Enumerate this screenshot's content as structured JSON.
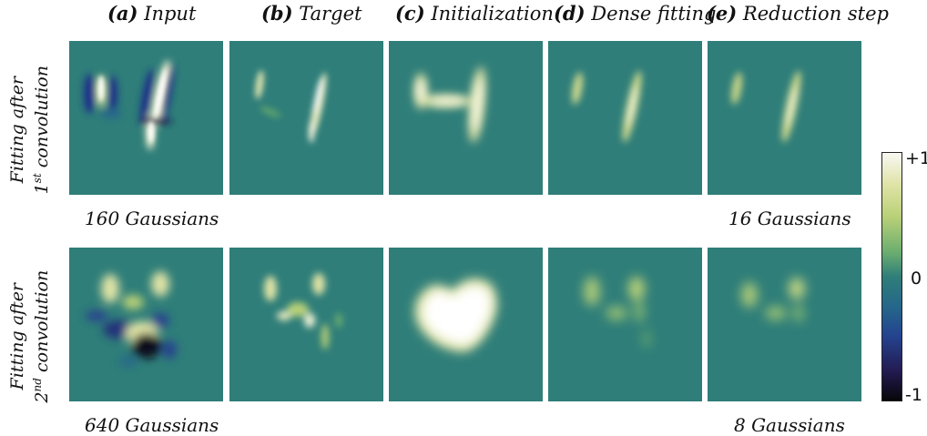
{
  "columns": [
    {
      "letter": "(a)",
      "label": "Input"
    },
    {
      "letter": "(b)",
      "label": "Target"
    },
    {
      "letter": "(c)",
      "label": "Initialization"
    },
    {
      "letter": "(d)",
      "label": "Dense fitting"
    },
    {
      "letter": "(e)",
      "label": "Reduction step"
    }
  ],
  "rows": [
    {
      "label_line1": "Fitting after",
      "ordinal_num": "1",
      "ordinal_sup": "st",
      "label_word": "convolution",
      "count_input": "160 Gaussians",
      "count_reduced": "16 Gaussians"
    },
    {
      "label_line1": "Fitting after",
      "ordinal_num": "2",
      "ordinal_sup": "nd",
      "label_word": "convolution",
      "count_input": "640 Gaussians",
      "count_reduced": "8 Gaussians"
    }
  ],
  "colorbar": {
    "max": "+1",
    "mid": "0",
    "min": "-1",
    "colors": {
      "positive": "#f8f8f2",
      "zero": "#2f7e79",
      "negative": "#070608"
    }
  }
}
